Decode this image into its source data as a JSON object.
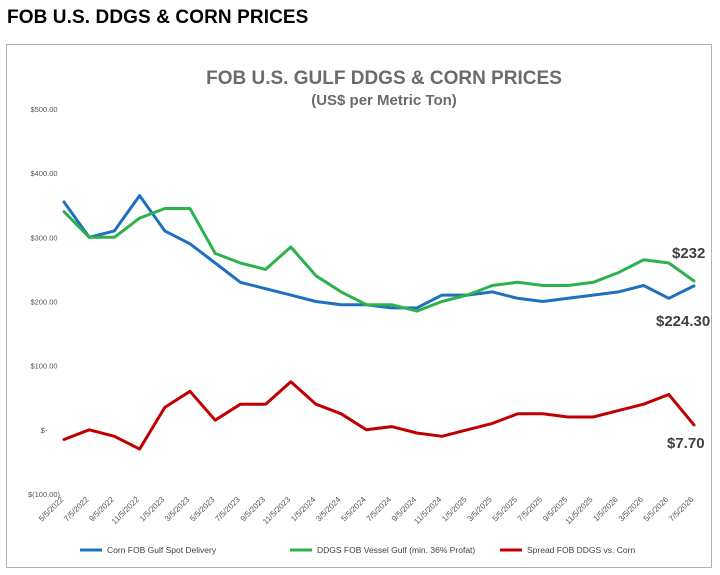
{
  "page": {
    "heading": "FOB U.S. DDGS & CORN PRICES"
  },
  "chart_data": {
    "type": "line",
    "title": "FOB U.S. GULF DDGS & CORN PRICES",
    "subtitle": "(US$ per Metric Ton)",
    "ylim": [
      -100,
      500
    ],
    "yticks": [
      -100,
      0,
      100,
      200,
      300,
      400,
      500
    ],
    "ytick_labels": [
      "$(100.00)",
      "$-",
      "$100.00",
      "$200.00",
      "$300.00",
      "$400.00",
      "$500.00"
    ],
    "categories": [
      "5/5/2022",
      "7/5/2022",
      "9/5/2022",
      "11/5/2022",
      "1/5/2023",
      "3/5/2023",
      "5/5/2023",
      "7/5/2023",
      "9/5/2023",
      "11/5/2023",
      "1/5/2024",
      "3/5/2024",
      "5/5/2024",
      "7/5/2024",
      "9/5/2024",
      "11/5/2024",
      "1/5/2025",
      "3/5/2025",
      "5/5/2025",
      "7/5/2025",
      "9/5/2025",
      "11/5/2025",
      "1/5/2026",
      "3/5/2026",
      "5/5/2026",
      "7/5/2026"
    ],
    "series": [
      {
        "name": "Corn FOB Gulf Spot  Delivery",
        "color": "#1f6fbf",
        "values": [
          355,
          300,
          310,
          365,
          310,
          290,
          260,
          230,
          220,
          210,
          200,
          195,
          195,
          190,
          190,
          210,
          210,
          215,
          205,
          200,
          205,
          210,
          215,
          225,
          205,
          224.3
        ]
      },
      {
        "name": "DDGS FOB Vessel Gulf (min. 36% Profat)",
        "color": "#2bb24c",
        "values": [
          340,
          300,
          300,
          330,
          345,
          345,
          275,
          260,
          250,
          285,
          240,
          215,
          195,
          195,
          185,
          200,
          210,
          225,
          230,
          225,
          225,
          230,
          245,
          265,
          260,
          232
        ]
      },
      {
        "name": "Spread FOB DDGS vs. Corn",
        "color": "#c00000",
        "values": [
          -15,
          0,
          -10,
          -30,
          35,
          60,
          15,
          40,
          40,
          75,
          40,
          25,
          0,
          5,
          -5,
          -10,
          0,
          10,
          25,
          25,
          20,
          20,
          30,
          40,
          55,
          7.7
        ]
      }
    ],
    "end_labels": {
      "ddgs": "$232",
      "corn": "$224.30",
      "spread": "$7.70"
    },
    "legend_position": "bottom",
    "grid": false
  },
  "icons": [
    "legend-line-icon"
  ]
}
